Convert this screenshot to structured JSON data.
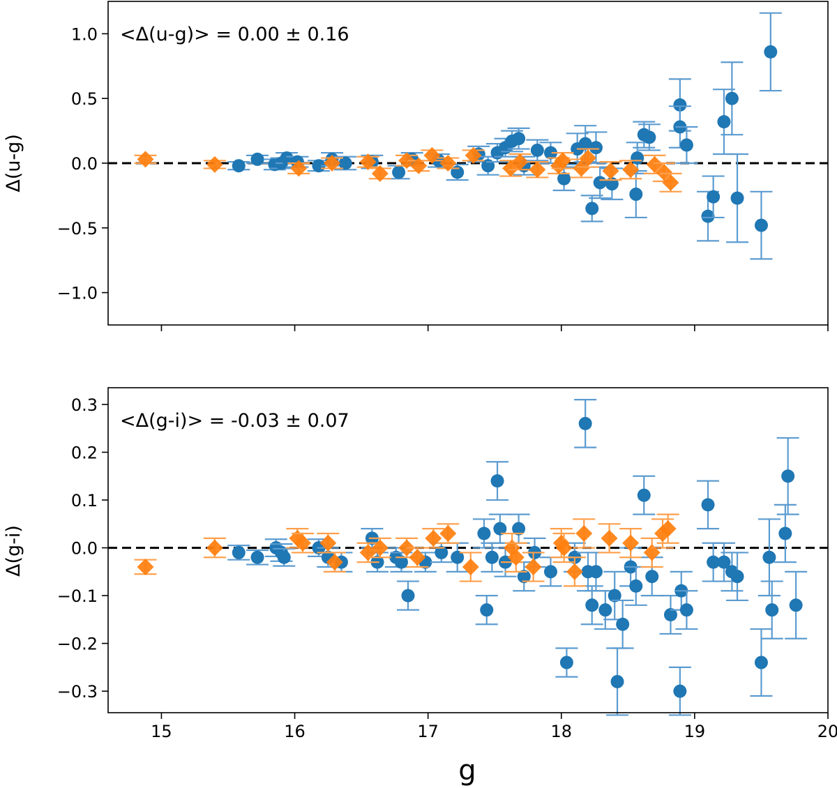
{
  "colors": {
    "blue": "#1f77b4",
    "orange": "#ff7f0e",
    "errbar_blue": "#5b9bd0",
    "errbar_orange": "#ff9f4a"
  },
  "xlabel": "g",
  "xlim": [
    14.6,
    20.0
  ],
  "xticks": [
    15,
    16,
    17,
    18,
    19,
    20
  ],
  "chart_data": [
    {
      "type": "scatter",
      "title": "",
      "annotation": "<Δ(u-g)> = 0.00 ± 0.16",
      "xlabel": "g",
      "ylabel": "Δ(u-g)",
      "ylim": [
        -1.25,
        1.25
      ],
      "yticks": [
        1.0,
        0.5,
        0.0,
        -0.5,
        -1.0
      ],
      "ytick_labels": [
        "1.0",
        "0.5",
        "0.0",
        "−0.5",
        "−1.0"
      ],
      "reference_line": 0.0,
      "series": [
        {
          "name": "blue",
          "marker": "circle",
          "points": [
            {
              "x": 15.58,
              "y": -0.02,
              "err": 0.03
            },
            {
              "x": 15.72,
              "y": 0.03,
              "err": 0.03
            },
            {
              "x": 15.85,
              "y": -0.01,
              "err": 0.04
            },
            {
              "x": 15.9,
              "y": 0.0,
              "err": 0.04
            },
            {
              "x": 15.94,
              "y": 0.04,
              "err": 0.04
            },
            {
              "x": 16.02,
              "y": 0.01,
              "err": 0.04
            },
            {
              "x": 16.18,
              "y": -0.02,
              "err": 0.04
            },
            {
              "x": 16.28,
              "y": 0.03,
              "err": 0.05
            },
            {
              "x": 16.38,
              "y": 0.0,
              "err": 0.05
            },
            {
              "x": 16.58,
              "y": 0.01,
              "err": 0.05
            },
            {
              "x": 16.78,
              "y": -0.07,
              "err": 0.05
            },
            {
              "x": 16.88,
              "y": 0.03,
              "err": 0.05
            },
            {
              "x": 17.08,
              "y": 0.02,
              "err": 0.05
            },
            {
              "x": 17.22,
              "y": -0.07,
              "err": 0.06
            },
            {
              "x": 17.38,
              "y": 0.07,
              "err": 0.06
            },
            {
              "x": 17.45,
              "y": -0.02,
              "err": 0.07
            },
            {
              "x": 17.52,
              "y": 0.08,
              "err": 0.07
            },
            {
              "x": 17.58,
              "y": 0.12,
              "err": 0.07
            },
            {
              "x": 17.63,
              "y": 0.17,
              "err": 0.08
            },
            {
              "x": 17.68,
              "y": 0.19,
              "err": 0.08
            },
            {
              "x": 17.72,
              "y": -0.02,
              "err": 0.07
            },
            {
              "x": 17.82,
              "y": 0.1,
              "err": 0.08
            },
            {
              "x": 17.92,
              "y": 0.08,
              "err": 0.08
            },
            {
              "x": 18.02,
              "y": -0.12,
              "err": 0.09
            },
            {
              "x": 18.12,
              "y": 0.11,
              "err": 0.12
            },
            {
              "x": 18.18,
              "y": 0.15,
              "err": 0.14
            },
            {
              "x": 18.23,
              "y": -0.35,
              "err": 0.1
            },
            {
              "x": 18.26,
              "y": 0.12,
              "err": 0.12
            },
            {
              "x": 18.29,
              "y": -0.15,
              "err": 0.12
            },
            {
              "x": 18.38,
              "y": -0.16,
              "err": 0.12
            },
            {
              "x": 18.56,
              "y": -0.24,
              "err": 0.18
            },
            {
              "x": 18.57,
              "y": 0.04,
              "err": 0.12
            },
            {
              "x": 18.62,
              "y": 0.22,
              "err": 0.1
            },
            {
              "x": 18.66,
              "y": 0.2,
              "err": 0.1
            },
            {
              "x": 18.89,
              "y": 0.45,
              "err": 0.2
            },
            {
              "x": 18.89,
              "y": 0.28,
              "err": 0.16
            },
            {
              "x": 18.94,
              "y": 0.14,
              "err": 0.14
            },
            {
              "x": 19.1,
              "y": -0.41,
              "err": 0.19
            },
            {
              "x": 19.14,
              "y": -0.26,
              "err": 0.16
            },
            {
              "x": 19.22,
              "y": 0.32,
              "err": 0.25
            },
            {
              "x": 19.28,
              "y": 0.5,
              "err": 0.28
            },
            {
              "x": 19.32,
              "y": -0.27,
              "err": 0.34
            },
            {
              "x": 19.5,
              "y": -0.48,
              "err": 0.26
            },
            {
              "x": 19.57,
              "y": 0.86,
              "err": 0.3
            }
          ]
        },
        {
          "name": "orange",
          "marker": "diamond",
          "points": [
            {
              "x": 14.88,
              "y": 0.03,
              "err": 0.03
            },
            {
              "x": 15.4,
              "y": -0.01,
              "err": 0.03
            },
            {
              "x": 16.03,
              "y": -0.04,
              "err": 0.04
            },
            {
              "x": 16.28,
              "y": 0.0,
              "err": 0.04
            },
            {
              "x": 16.55,
              "y": 0.01,
              "err": 0.04
            },
            {
              "x": 16.64,
              "y": -0.08,
              "err": 0.04
            },
            {
              "x": 16.84,
              "y": 0.02,
              "err": 0.04
            },
            {
              "x": 16.93,
              "y": -0.02,
              "err": 0.04
            },
            {
              "x": 17.03,
              "y": 0.06,
              "err": 0.04
            },
            {
              "x": 17.15,
              "y": 0.0,
              "err": 0.04
            },
            {
              "x": 17.34,
              "y": 0.06,
              "err": 0.04
            },
            {
              "x": 17.62,
              "y": -0.04,
              "err": 0.06
            },
            {
              "x": 17.69,
              "y": 0.01,
              "err": 0.06
            },
            {
              "x": 17.82,
              "y": -0.05,
              "err": 0.06
            },
            {
              "x": 17.98,
              "y": -0.02,
              "err": 0.06
            },
            {
              "x": 18.01,
              "y": 0.02,
              "err": 0.06
            },
            {
              "x": 18.15,
              "y": -0.04,
              "err": 0.07
            },
            {
              "x": 18.2,
              "y": 0.04,
              "err": 0.07
            },
            {
              "x": 18.37,
              "y": -0.06,
              "err": 0.07
            },
            {
              "x": 18.52,
              "y": -0.05,
              "err": 0.07
            },
            {
              "x": 18.7,
              "y": -0.01,
              "err": 0.07
            },
            {
              "x": 18.77,
              "y": -0.07,
              "err": 0.07
            },
            {
              "x": 18.82,
              "y": -0.15,
              "err": 0.07
            }
          ]
        }
      ]
    },
    {
      "type": "scatter",
      "title": "",
      "annotation": "<Δ(g-i)> = -0.03 ± 0.07",
      "xlabel": "g",
      "ylabel": "Δ(g-i)",
      "ylim": [
        -0.345,
        0.335
      ],
      "yticks": [
        0.3,
        0.2,
        0.1,
        0.0,
        -0.1,
        -0.2,
        -0.3
      ],
      "ytick_labels": [
        "0.3",
        "0.2",
        "0.1",
        "0.0",
        "−0.1",
        "−0.2",
        "−0.3"
      ],
      "reference_line": 0.0,
      "series": [
        {
          "name": "blue",
          "marker": "circle",
          "points": [
            {
              "x": 15.58,
              "y": -0.01,
              "err": 0.015
            },
            {
              "x": 15.72,
              "y": -0.02,
              "err": 0.015
            },
            {
              "x": 15.86,
              "y": 0.0,
              "err": 0.018
            },
            {
              "x": 15.9,
              "y": -0.01,
              "err": 0.018
            },
            {
              "x": 15.92,
              "y": -0.02,
              "err": 0.018
            },
            {
              "x": 16.18,
              "y": 0.0,
              "err": 0.018
            },
            {
              "x": 16.25,
              "y": -0.02,
              "err": 0.02
            },
            {
              "x": 16.35,
              "y": -0.03,
              "err": 0.02
            },
            {
              "x": 16.58,
              "y": 0.02,
              "err": 0.02
            },
            {
              "x": 16.62,
              "y": -0.03,
              "err": 0.02
            },
            {
              "x": 16.76,
              "y": -0.02,
              "err": 0.02
            },
            {
              "x": 16.8,
              "y": -0.03,
              "err": 0.02
            },
            {
              "x": 16.85,
              "y": -0.1,
              "err": 0.03
            },
            {
              "x": 16.98,
              "y": -0.03,
              "err": 0.02
            },
            {
              "x": 17.1,
              "y": -0.01,
              "err": 0.02
            },
            {
              "x": 17.22,
              "y": -0.02,
              "err": 0.03
            },
            {
              "x": 17.42,
              "y": 0.03,
              "err": 0.03
            },
            {
              "x": 17.44,
              "y": -0.13,
              "err": 0.03
            },
            {
              "x": 17.48,
              "y": -0.02,
              "err": 0.03
            },
            {
              "x": 17.52,
              "y": 0.14,
              "err": 0.04
            },
            {
              "x": 17.54,
              "y": 0.04,
              "err": 0.03
            },
            {
              "x": 17.58,
              "y": -0.03,
              "err": 0.03
            },
            {
              "x": 17.68,
              "y": 0.04,
              "err": 0.03
            },
            {
              "x": 17.72,
              "y": -0.06,
              "err": 0.03
            },
            {
              "x": 17.8,
              "y": -0.01,
              "err": 0.03
            },
            {
              "x": 17.92,
              "y": -0.05,
              "err": 0.03
            },
            {
              "x": 18.04,
              "y": -0.24,
              "err": 0.03
            },
            {
              "x": 18.1,
              "y": -0.02,
              "err": 0.03
            },
            {
              "x": 18.18,
              "y": 0.26,
              "err": 0.05
            },
            {
              "x": 18.2,
              "y": -0.05,
              "err": 0.04
            },
            {
              "x": 18.23,
              "y": -0.12,
              "err": 0.04
            },
            {
              "x": 18.26,
              "y": -0.05,
              "err": 0.04
            },
            {
              "x": 18.33,
              "y": -0.13,
              "err": 0.04
            },
            {
              "x": 18.4,
              "y": -0.1,
              "err": 0.05
            },
            {
              "x": 18.42,
              "y": -0.28,
              "err": 0.07
            },
            {
              "x": 18.46,
              "y": -0.16,
              "err": 0.05
            },
            {
              "x": 18.52,
              "y": -0.04,
              "err": 0.04
            },
            {
              "x": 18.56,
              "y": -0.08,
              "err": 0.04
            },
            {
              "x": 18.62,
              "y": 0.11,
              "err": 0.04
            },
            {
              "x": 18.68,
              "y": -0.06,
              "err": 0.04
            },
            {
              "x": 18.82,
              "y": -0.14,
              "err": 0.04
            },
            {
              "x": 18.89,
              "y": -0.3,
              "err": 0.05
            },
            {
              "x": 18.9,
              "y": -0.09,
              "err": 0.04
            },
            {
              "x": 18.94,
              "y": -0.13,
              "err": 0.04
            },
            {
              "x": 19.1,
              "y": 0.09,
              "err": 0.05
            },
            {
              "x": 19.14,
              "y": -0.03,
              "err": 0.04
            },
            {
              "x": 19.22,
              "y": -0.03,
              "err": 0.04
            },
            {
              "x": 19.28,
              "y": -0.05,
              "err": 0.04
            },
            {
              "x": 19.32,
              "y": -0.06,
              "err": 0.05
            },
            {
              "x": 19.5,
              "y": -0.24,
              "err": 0.07
            },
            {
              "x": 19.56,
              "y": -0.02,
              "err": 0.08
            },
            {
              "x": 19.58,
              "y": -0.13,
              "err": 0.06
            },
            {
              "x": 19.68,
              "y": 0.03,
              "err": 0.06
            },
            {
              "x": 19.7,
              "y": 0.15,
              "err": 0.08
            },
            {
              "x": 19.76,
              "y": -0.12,
              "err": 0.07
            }
          ]
        },
        {
          "name": "orange",
          "marker": "diamond",
          "points": [
            {
              "x": 14.88,
              "y": -0.04,
              "err": 0.015
            },
            {
              "x": 15.4,
              "y": 0.0,
              "err": 0.02
            },
            {
              "x": 16.02,
              "y": 0.02,
              "err": 0.02
            },
            {
              "x": 16.06,
              "y": 0.01,
              "err": 0.02
            },
            {
              "x": 16.25,
              "y": 0.01,
              "err": 0.02
            },
            {
              "x": 16.3,
              "y": -0.03,
              "err": 0.02
            },
            {
              "x": 16.55,
              "y": -0.01,
              "err": 0.02
            },
            {
              "x": 16.64,
              "y": 0.0,
              "err": 0.02
            },
            {
              "x": 16.84,
              "y": 0.0,
              "err": 0.02
            },
            {
              "x": 16.92,
              "y": -0.02,
              "err": 0.02
            },
            {
              "x": 17.04,
              "y": 0.02,
              "err": 0.02
            },
            {
              "x": 17.15,
              "y": 0.03,
              "err": 0.02
            },
            {
              "x": 17.32,
              "y": -0.04,
              "err": 0.03
            },
            {
              "x": 17.63,
              "y": 0.0,
              "err": 0.03
            },
            {
              "x": 17.66,
              "y": -0.02,
              "err": 0.03
            },
            {
              "x": 17.79,
              "y": -0.04,
              "err": 0.03
            },
            {
              "x": 18.0,
              "y": 0.01,
              "err": 0.03
            },
            {
              "x": 18.02,
              "y": 0.0,
              "err": 0.03
            },
            {
              "x": 18.1,
              "y": -0.05,
              "err": 0.03
            },
            {
              "x": 18.17,
              "y": 0.03,
              "err": 0.03
            },
            {
              "x": 18.36,
              "y": 0.02,
              "err": 0.03
            },
            {
              "x": 18.52,
              "y": 0.01,
              "err": 0.03
            },
            {
              "x": 18.68,
              "y": -0.01,
              "err": 0.03
            },
            {
              "x": 18.76,
              "y": 0.03,
              "err": 0.03
            },
            {
              "x": 18.8,
              "y": 0.04,
              "err": 0.03
            }
          ]
        }
      ]
    }
  ]
}
